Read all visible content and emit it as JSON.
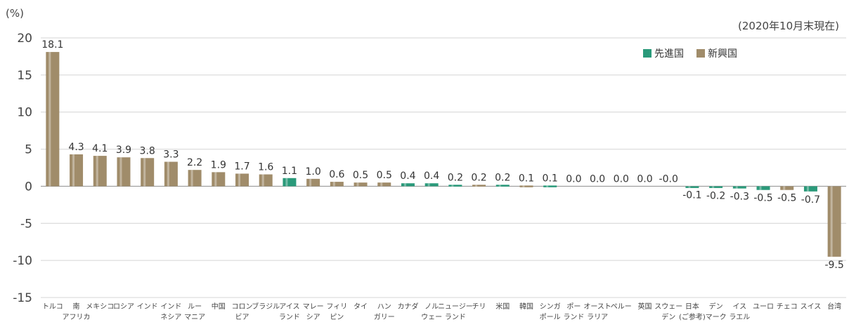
{
  "chart_data": {
    "type": "bar",
    "y_unit_label": "(%)",
    "note": "(2020年10月末現在)",
    "ylim": [
      -15,
      20
    ],
    "yticks": [
      20,
      15,
      10,
      5,
      0,
      -5,
      -10,
      -15
    ],
    "grid": true,
    "legend_position": "top-right",
    "legend": [
      {
        "name": "先進国",
        "color": "#2a9a7a"
      },
      {
        "name": "新興国",
        "color": "#a08c6a"
      }
    ],
    "categories": [
      [
        "トルコ"
      ],
      [
        "南",
        "アフリカ"
      ],
      [
        "メキシコ"
      ],
      [
        "ロシア"
      ],
      [
        "インド"
      ],
      [
        "インド",
        "ネシア"
      ],
      [
        "ルー",
        "マニア"
      ],
      [
        "中国"
      ],
      [
        "コロン",
        "ビア"
      ],
      [
        "ブラジル"
      ],
      [
        "アイス",
        "ランド"
      ],
      [
        "マレー",
        "シア"
      ],
      [
        "フィリ",
        "ピン"
      ],
      [
        "タイ"
      ],
      [
        "ハン",
        "ガリー"
      ],
      [
        "カナダ"
      ],
      [
        "ノル",
        "ウェー"
      ],
      [
        "ニュージー",
        "ランド"
      ],
      [
        "チリ"
      ],
      [
        "米国"
      ],
      [
        "韓国"
      ],
      [
        "シンガ",
        "ポール"
      ],
      [
        "ポー",
        "ランド"
      ],
      [
        "オースト",
        "ラリア"
      ],
      [
        "ペルー"
      ],
      [
        "英国"
      ],
      [
        "スウェー",
        "デン"
      ],
      [
        "日本",
        "(ご参考)"
      ],
      [
        "デン",
        "マーク"
      ],
      [
        "イス",
        "ラエル"
      ],
      [
        "ユーロ"
      ],
      [
        "チェコ"
      ],
      [
        "スイス"
      ],
      [
        "台湾"
      ]
    ],
    "values": [
      18.1,
      4.3,
      4.1,
      3.9,
      3.8,
      3.3,
      2.2,
      1.9,
      1.7,
      1.6,
      1.1,
      1.0,
      0.6,
      0.5,
      0.5,
      0.4,
      0.4,
      0.2,
      0.2,
      0.2,
      0.1,
      0.1,
      0.0,
      0.0,
      0.0,
      0.0,
      -0.0,
      -0.1,
      -0.2,
      -0.3,
      -0.5,
      -0.5,
      -0.7,
      -9.5
    ],
    "value_labels": [
      "18.1",
      "4.3",
      "4.1",
      "3.9",
      "3.8",
      "3.3",
      "2.2",
      "1.9",
      "1.7",
      "1.6",
      "1.1",
      "1.0",
      "0.6",
      "0.5",
      "0.5",
      "0.4",
      "0.4",
      "0.2",
      "0.2",
      "0.2",
      "0.1",
      "0.1",
      "0.0",
      "0.0",
      "0.0",
      "0.0",
      "-0.0",
      "-0.1",
      "-0.2",
      "-0.3",
      "-0.5",
      "-0.5",
      "-0.7",
      "-9.5"
    ],
    "groups": [
      "新興国",
      "新興国",
      "新興国",
      "新興国",
      "新興国",
      "新興国",
      "新興国",
      "新興国",
      "新興国",
      "新興国",
      "先進国",
      "新興国",
      "新興国",
      "新興国",
      "新興国",
      "先進国",
      "先進国",
      "先進国",
      "新興国",
      "先進国",
      "新興国",
      "先進国",
      "新興国",
      "先進国",
      "新興国",
      "先進国",
      "先進国",
      "先進国",
      "先進国",
      "先進国",
      "先進国",
      "新興国",
      "先進国",
      "新興国"
    ]
  }
}
